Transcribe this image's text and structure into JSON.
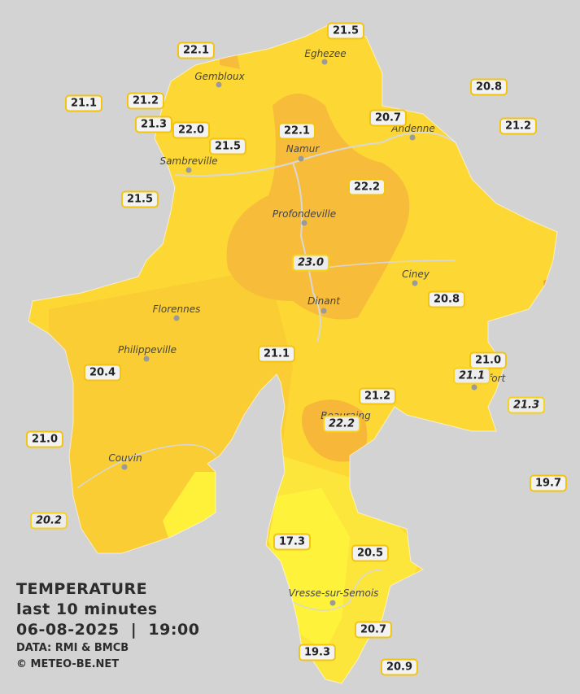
{
  "legend": {
    "title": "TEMPERATURE",
    "period": "last 10 minutes",
    "datetime": "06-08-2025  |  19:00",
    "source": "DATA: RMI & BMCB",
    "copyright": "© METEO-BE.NET"
  },
  "cities": [
    "Eghezee",
    "Gembloux",
    "Andenne",
    "Namur",
    "Sambreville",
    "Profondeville",
    "Ciney",
    "Dinant",
    "Florennes",
    "Philippeville",
    "Couvin",
    "Vresse-sur-Semois",
    "Rochefort",
    "Beauraing"
  ],
  "stations": [
    "21.5",
    "22.1",
    "20.8",
    "21.1",
    "21.2",
    "21.3",
    "22.0",
    "22.1",
    "20.7",
    "21.2",
    "21.5",
    "22.2",
    "21.5",
    "23.0",
    "20.8",
    "21.1",
    "21.0",
    "21.1",
    "20.4",
    "21.2",
    "21.3",
    "22.2",
    "21.0",
    "19.7",
    "20.2",
    "17.3",
    "20.5",
    "20.7",
    "19.3",
    "20.9"
  ]
}
